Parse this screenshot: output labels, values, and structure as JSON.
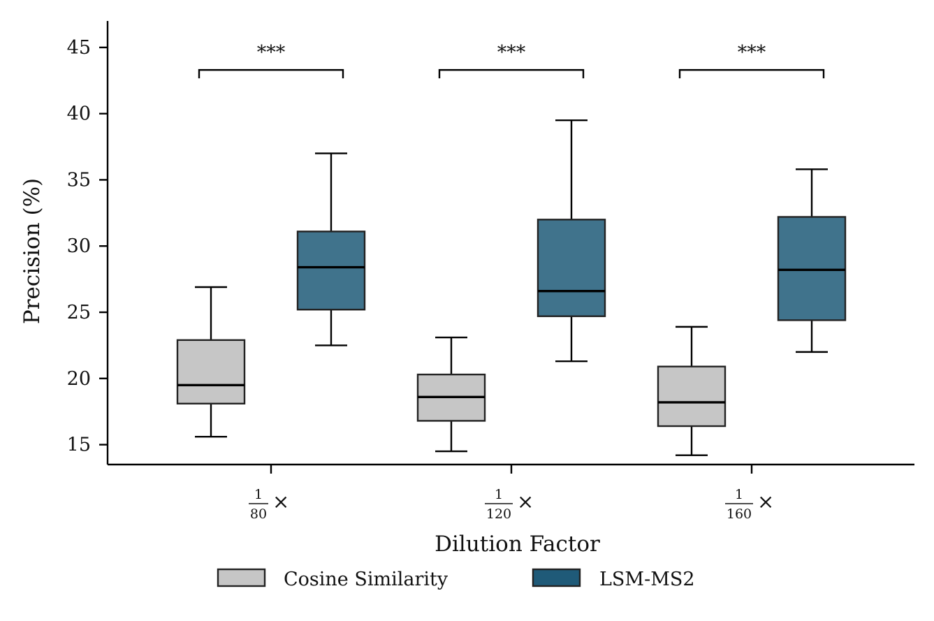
{
  "chart_data": {
    "type": "box",
    "title": "",
    "xlabel": "Dilution Factor",
    "ylabel": "Precision (%)",
    "ylim": [
      13.5,
      47
    ],
    "yticks": [
      15,
      20,
      25,
      30,
      35,
      40,
      45
    ],
    "categories": [
      {
        "numerator": "1",
        "denominator": "80",
        "suffix": "×"
      },
      {
        "numerator": "1",
        "denominator": "120",
        "suffix": "×"
      },
      {
        "numerator": "1",
        "denominator": "160",
        "suffix": "×"
      }
    ],
    "series": [
      {
        "name": "Cosine Similarity",
        "color": "#c6c6c6",
        "boxes": [
          {
            "whisker_low": 15.6,
            "q1": 18.1,
            "median": 19.5,
            "q3": 22.9,
            "whisker_high": 26.9
          },
          {
            "whisker_low": 14.5,
            "q1": 16.8,
            "median": 18.6,
            "q3": 20.3,
            "whisker_high": 23.1
          },
          {
            "whisker_low": 14.2,
            "q1": 16.4,
            "median": 18.2,
            "q3": 20.9,
            "whisker_high": 23.9
          }
        ]
      },
      {
        "name": "LSM-MS2",
        "color": "#1f5a78",
        "boxes": [
          {
            "whisker_low": 22.5,
            "q1": 25.2,
            "median": 28.4,
            "q3": 31.1,
            "whisker_high": 37.0
          },
          {
            "whisker_low": 21.3,
            "q1": 24.7,
            "median": 26.6,
            "q3": 32.0,
            "whisker_high": 39.5
          },
          {
            "whisker_low": 22.0,
            "q1": 24.4,
            "median": 28.2,
            "q3": 32.2,
            "whisker_high": 35.8
          }
        ]
      }
    ],
    "significance": [
      {
        "category_index": 0,
        "label": "***",
        "y": 43.3
      },
      {
        "category_index": 1,
        "label": "***",
        "y": 43.3
      },
      {
        "category_index": 2,
        "label": "***",
        "y": 43.3
      }
    ],
    "legend": {
      "position": "bottom-center",
      "entries": [
        "Cosine Similarity",
        "LSM-MS2"
      ]
    }
  }
}
